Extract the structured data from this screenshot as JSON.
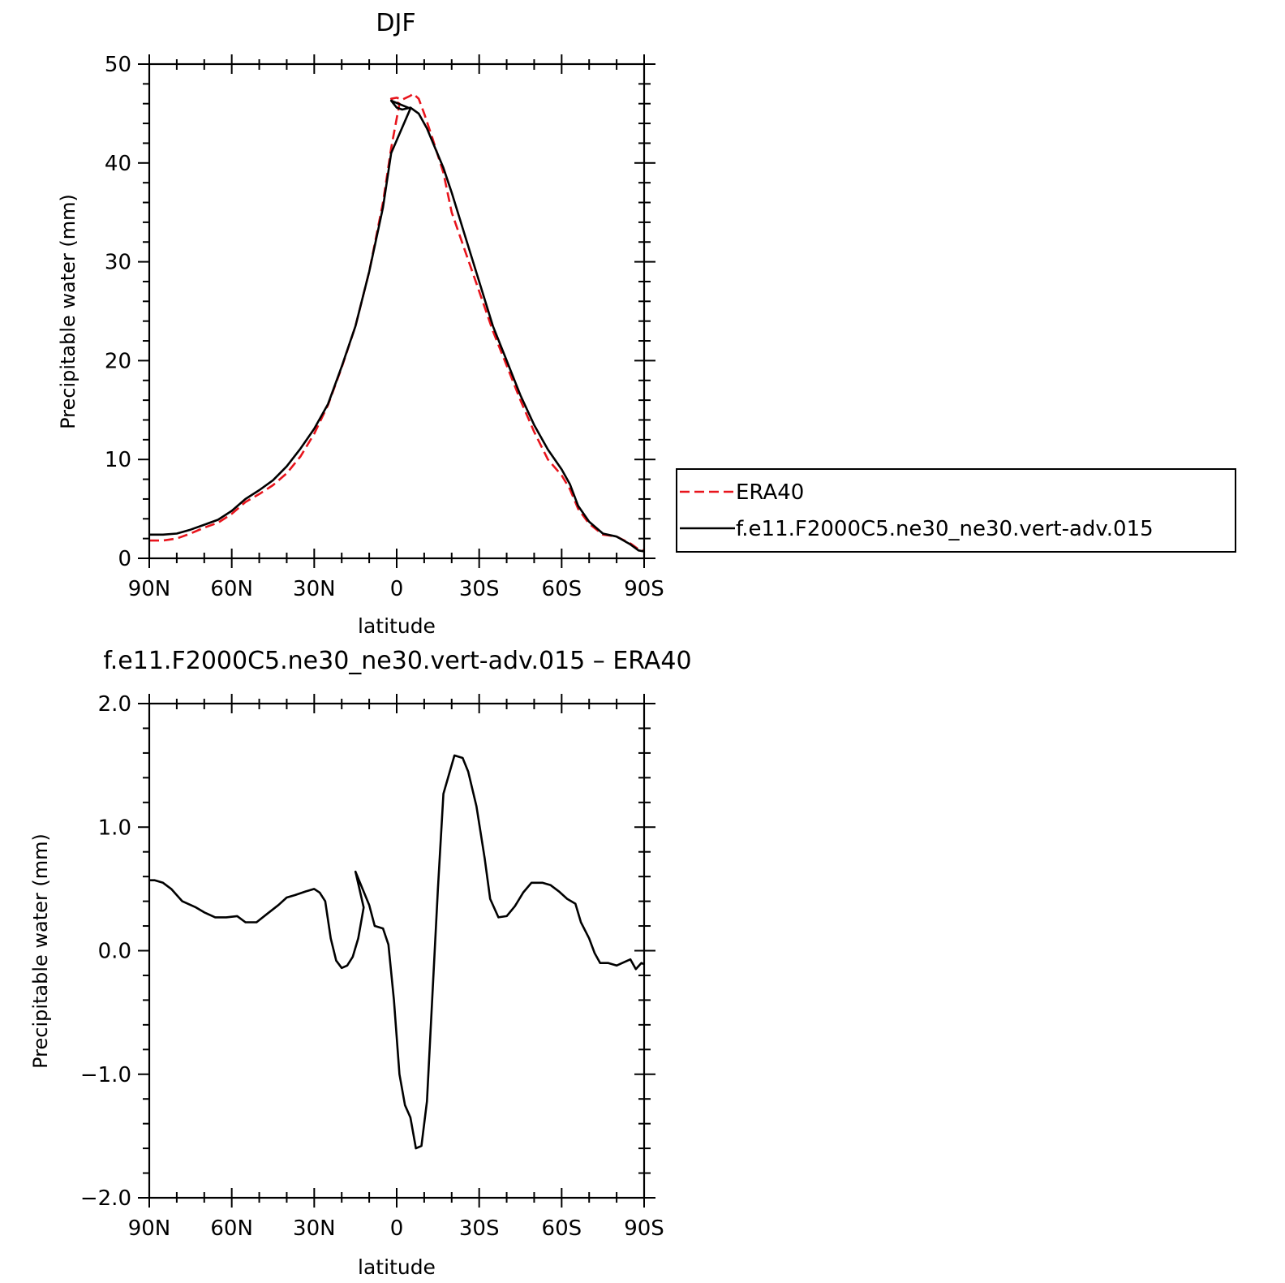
{
  "chart_data": [
    {
      "type": "line",
      "title": "DJF",
      "xlabel": "latitude",
      "ylabel": "Precipitable water (mm)",
      "xlim": [
        90,
        -90
      ],
      "ylim": [
        0,
        50
      ],
      "x_tick_labels": [
        "90N",
        "60N",
        "30N",
        "0",
        "30S",
        "60S",
        "90S"
      ],
      "y_tick_labels": [
        "0",
        "10",
        "20",
        "30",
        "40",
        "50"
      ],
      "legend": "right, outside plot",
      "series": [
        {
          "name": "ERA40",
          "color": "#e8141c",
          "style": "dashed",
          "points": [
            [
              90,
              1.8
            ],
            [
              85,
              1.8
            ],
            [
              80,
              2.0
            ],
            [
              75,
              2.5
            ],
            [
              70,
              3.1
            ],
            [
              65,
              3.6
            ],
            [
              60,
              4.5
            ],
            [
              55,
              5.7
            ],
            [
              50,
              6.5
            ],
            [
              45,
              7.4
            ],
            [
              40,
              8.6
            ],
            [
              35,
              10.3
            ],
            [
              30,
              12.6
            ],
            [
              25,
              15.5
            ],
            [
              20,
              19.3
            ],
            [
              15,
              23.5
            ],
            [
              10,
              29.0
            ],
            [
              5,
              36.0
            ],
            [
              2,
              41.5
            ],
            [
              -1,
              46.0
            ],
            [
              2,
              46.5
            ],
            [
              0,
              46.6
            ],
            [
              -2,
              46.4
            ],
            [
              -5,
              46.8
            ],
            [
              -6,
              47.0
            ],
            [
              -8,
              46.5
            ],
            [
              -10,
              45.0
            ],
            [
              -13,
              42.5
            ],
            [
              -17,
              39.0
            ],
            [
              -20,
              35.0
            ],
            [
              -25,
              31.0
            ],
            [
              -30,
              27.0
            ],
            [
              -35,
              23.0
            ],
            [
              -40,
              19.5
            ],
            [
              -45,
              16.0
            ],
            [
              -50,
              12.8
            ],
            [
              -55,
              10.0
            ],
            [
              -60,
              8.4
            ],
            [
              -63,
              7.0
            ],
            [
              -66,
              5.0
            ],
            [
              -70,
              3.5
            ],
            [
              -75,
              2.4
            ],
            [
              -80,
              2.2
            ],
            [
              -85,
              1.5
            ],
            [
              -88,
              0.9
            ],
            [
              -90,
              0.8
            ]
          ]
        },
        {
          "name": "f.e11.F2000C5.ne30_ne30.vert-adv.015",
          "color": "#000000",
          "style": "solid",
          "points": [
            [
              90,
              2.4
            ],
            [
              85,
              2.4
            ],
            [
              80,
              2.5
            ],
            [
              75,
              2.9
            ],
            [
              70,
              3.4
            ],
            [
              65,
              3.9
            ],
            [
              60,
              4.8
            ],
            [
              55,
              6.0
            ],
            [
              50,
              6.9
            ],
            [
              45,
              7.9
            ],
            [
              40,
              9.3
            ],
            [
              35,
              11.1
            ],
            [
              30,
              13.1
            ],
            [
              25,
              15.6
            ],
            [
              20,
              19.4
            ],
            [
              15,
              23.5
            ],
            [
              10,
              29.0
            ],
            [
              5,
              35.5
            ],
            [
              2,
              41.0
            ],
            [
              -5,
              45.5
            ],
            [
              2,
              46.3
            ],
            [
              0,
              45.6
            ],
            [
              -2,
              45.4
            ],
            [
              -5,
              45.6
            ],
            [
              -8,
              45.0
            ],
            [
              -11,
              43.5
            ],
            [
              -14,
              41.5
            ],
            [
              -17,
              39.5
            ],
            [
              -20,
              37.0
            ],
            [
              -25,
              32.5
            ],
            [
              -30,
              28.0
            ],
            [
              -35,
              23.5
            ],
            [
              -40,
              20.0
            ],
            [
              -45,
              16.5
            ],
            [
              -50,
              13.5
            ],
            [
              -55,
              11.0
            ],
            [
              -60,
              9.0
            ],
            [
              -63,
              7.5
            ],
            [
              -66,
              5.3
            ],
            [
              -70,
              3.7
            ],
            [
              -75,
              2.5
            ],
            [
              -80,
              2.2
            ],
            [
              -85,
              1.4
            ],
            [
              -88,
              0.8
            ],
            [
              -90,
              0.7
            ]
          ]
        }
      ]
    },
    {
      "type": "line",
      "title": "f.e11.F2000C5.ne30_ne30.vert-adv.015 – ERA40",
      "xlabel": "latitude",
      "ylabel": "Precipitable water (mm)",
      "xlim": [
        90,
        -90
      ],
      "ylim": [
        -2.0,
        2.0
      ],
      "x_tick_labels": [
        "90N",
        "60N",
        "30N",
        "0",
        "30S",
        "60S",
        "90S"
      ],
      "y_tick_labels": [
        "−2.0",
        "−1.0",
        "0.0",
        "1.0",
        "2.0"
      ],
      "series": [
        {
          "color": "#000000",
          "style": "solid",
          "points": [
            [
              90,
              0.57
            ],
            [
              88,
              0.57
            ],
            [
              85,
              0.55
            ],
            [
              82,
              0.5
            ],
            [
              78,
              0.4
            ],
            [
              73,
              0.35
            ],
            [
              70,
              0.31
            ],
            [
              66,
              0.27
            ],
            [
              62,
              0.27
            ],
            [
              58,
              0.28
            ],
            [
              55,
              0.23
            ],
            [
              51,
              0.23
            ],
            [
              47,
              0.3
            ],
            [
              43,
              0.37
            ],
            [
              40,
              0.43
            ],
            [
              37,
              0.45
            ],
            [
              33,
              0.48
            ],
            [
              30,
              0.5
            ],
            [
              28,
              0.47
            ],
            [
              26,
              0.4
            ],
            [
              24,
              0.1
            ],
            [
              22,
              -0.08
            ],
            [
              20,
              -0.14
            ],
            [
              18,
              -0.12
            ],
            [
              16,
              -0.05
            ],
            [
              14,
              0.1
            ],
            [
              12,
              0.35
            ],
            [
              15,
              0.64
            ],
            [
              10,
              0.37
            ],
            [
              8,
              0.2
            ],
            [
              5,
              0.18
            ],
            [
              3,
              0.05
            ],
            [
              1,
              -0.4
            ],
            [
              -1,
              -1.0
            ],
            [
              -3,
              -1.25
            ],
            [
              -5,
              -1.35
            ],
            [
              -7,
              -1.6
            ],
            [
              -9,
              -1.58
            ],
            [
              -11,
              -1.22
            ],
            [
              -13,
              -0.35
            ],
            [
              -15,
              0.5
            ],
            [
              -17,
              1.27
            ],
            [
              -21,
              1.58
            ],
            [
              -24,
              1.56
            ],
            [
              -26,
              1.45
            ],
            [
              -29,
              1.17
            ],
            [
              -32,
              0.75
            ],
            [
              -34,
              0.42
            ],
            [
              -37,
              0.27
            ],
            [
              -40,
              0.28
            ],
            [
              -43,
              0.36
            ],
            [
              -46,
              0.47
            ],
            [
              -49,
              0.55
            ],
            [
              -53,
              0.55
            ],
            [
              -56,
              0.53
            ],
            [
              -59,
              0.48
            ],
            [
              -62,
              0.42
            ],
            [
              -65,
              0.38
            ],
            [
              -67,
              0.23
            ],
            [
              -70,
              0.1
            ],
            [
              -72,
              -0.02
            ],
            [
              -74,
              -0.1
            ],
            [
              -77,
              -0.1
            ],
            [
              -80,
              -0.12
            ],
            [
              -83,
              -0.09
            ],
            [
              -85,
              -0.07
            ],
            [
              -87,
              -0.15
            ],
            [
              -89,
              -0.1
            ],
            [
              -90,
              -0.11
            ]
          ]
        }
      ]
    }
  ]
}
